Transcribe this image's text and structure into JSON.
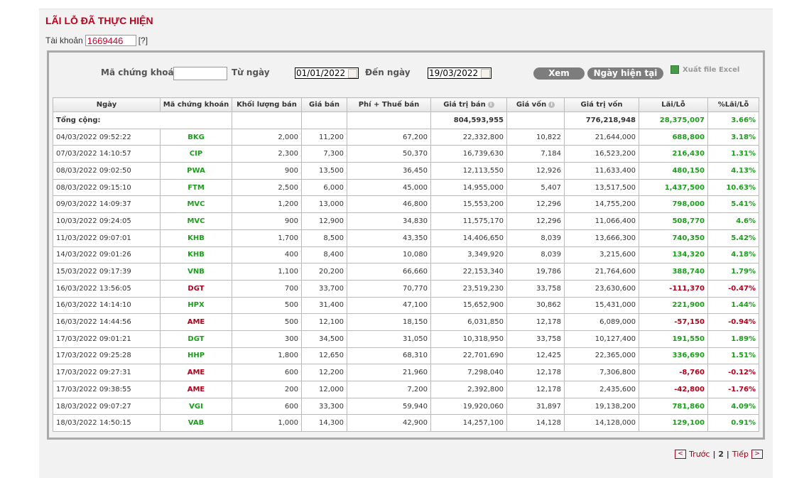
{
  "title": "LÃI LỖ ĐÃ THỰC HIỆN",
  "account": {
    "label": "Tài khoản",
    "value": "1669446",
    "help": "[?]"
  },
  "filters": {
    "symbol_label": "Mã chứng khoán",
    "symbol_value": "",
    "from_label": "Từ ngày",
    "from_value": "01/01/2022",
    "to_label": "Đến ngày",
    "to_value": "19/03/2022"
  },
  "buttons": {
    "view": "Xem",
    "today": "Ngày hiện tại",
    "export": "Xuất file Excel"
  },
  "colors": {
    "gain": "#1a9f1a",
    "loss": "#b3001b",
    "title": "#c0001c"
  },
  "table": {
    "headers": [
      "Ngày",
      "Mã chứng khoán",
      "Khối lượng bán",
      "Giá bán",
      "Phí + Thuế bán",
      "Giá trị bán",
      "Giá vốn",
      "Giá trị vốn",
      "Lãi/Lỗ",
      "%Lãi/Lỗ"
    ],
    "total": {
      "label": "Tổng cộng:",
      "sell_value": "804,593,955",
      "cost_value": "776,218,948",
      "pnl": "28,375,007",
      "pnl_pct": "3.66%"
    },
    "rows": [
      [
        "04/03/2022 09:52:22",
        "BKG",
        "2,000",
        "11,200",
        "67,200",
        "22,332,800",
        "10,822",
        "21,644,000",
        "688,800",
        "3.18%"
      ],
      [
        "07/03/2022 14:10:57",
        "CIP",
        "2,300",
        "7,300",
        "50,370",
        "16,739,630",
        "7,184",
        "16,523,200",
        "216,430",
        "1.31%"
      ],
      [
        "08/03/2022 09:02:50",
        "PWA",
        "900",
        "13,500",
        "36,450",
        "12,113,550",
        "12,926",
        "11,633,400",
        "480,150",
        "4.13%"
      ],
      [
        "08/03/2022 09:15:10",
        "FTM",
        "2,500",
        "6,000",
        "45,000",
        "14,955,000",
        "5,407",
        "13,517,500",
        "1,437,500",
        "10.63%"
      ],
      [
        "09/03/2022 14:09:37",
        "MVC",
        "1,200",
        "13,000",
        "46,800",
        "15,553,200",
        "12,296",
        "14,755,200",
        "798,000",
        "5.41%"
      ],
      [
        "10/03/2022 09:24:05",
        "MVC",
        "900",
        "12,900",
        "34,830",
        "11,575,170",
        "12,296",
        "11,066,400",
        "508,770",
        "4.6%"
      ],
      [
        "11/03/2022 09:07:01",
        "KHB",
        "1,700",
        "8,500",
        "43,350",
        "14,406,650",
        "8,039",
        "13,666,300",
        "740,350",
        "5.42%"
      ],
      [
        "14/03/2022 09:01:26",
        "KHB",
        "400",
        "8,400",
        "10,080",
        "3,349,920",
        "8,039",
        "3,215,600",
        "134,320",
        "4.18%"
      ],
      [
        "15/03/2022 09:17:39",
        "VNB",
        "1,100",
        "20,200",
        "66,660",
        "22,153,340",
        "19,786",
        "21,764,600",
        "388,740",
        "1.79%"
      ],
      [
        "16/03/2022 13:56:05",
        "DGT",
        "700",
        "33,700",
        "70,770",
        "23,519,230",
        "33,758",
        "23,630,600",
        "-111,370",
        "-0.47%"
      ],
      [
        "16/03/2022 14:14:10",
        "HPX",
        "500",
        "31,400",
        "47,100",
        "15,652,900",
        "30,862",
        "15,431,000",
        "221,900",
        "1.44%"
      ],
      [
        "16/03/2022 14:44:56",
        "AME",
        "500",
        "12,100",
        "18,150",
        "6,031,850",
        "12,178",
        "6,089,000",
        "-57,150",
        "-0.94%"
      ],
      [
        "17/03/2022 09:01:21",
        "DGT",
        "300",
        "34,500",
        "31,050",
        "10,318,950",
        "33,758",
        "10,127,400",
        "191,550",
        "1.89%"
      ],
      [
        "17/03/2022 09:25:28",
        "HHP",
        "1,800",
        "12,650",
        "68,310",
        "22,701,690",
        "12,425",
        "22,365,000",
        "336,690",
        "1.51%"
      ],
      [
        "17/03/2022 09:27:31",
        "AME",
        "600",
        "12,200",
        "21,960",
        "7,298,040",
        "12,178",
        "7,306,800",
        "-8,760",
        "-0.12%"
      ],
      [
        "17/03/2022 09:38:55",
        "AME",
        "200",
        "12,000",
        "7,200",
        "2,392,800",
        "12,178",
        "2,435,600",
        "-42,800",
        "-1.76%"
      ],
      [
        "18/03/2022 09:07:27",
        "VGI",
        "600",
        "33,300",
        "59,940",
        "19,920,060",
        "31,897",
        "19,138,200",
        "781,860",
        "4.09%"
      ],
      [
        "18/03/2022 14:50:15",
        "VAB",
        "1,000",
        "14,300",
        "42,900",
        "14,257,100",
        "14,128",
        "14,128,000",
        "129,100",
        "0.91%"
      ]
    ]
  },
  "pagination": {
    "prev_icon": "<",
    "prev": "Trước",
    "current": "| 2 |",
    "next": "Tiếp",
    "next_icon": ">"
  }
}
